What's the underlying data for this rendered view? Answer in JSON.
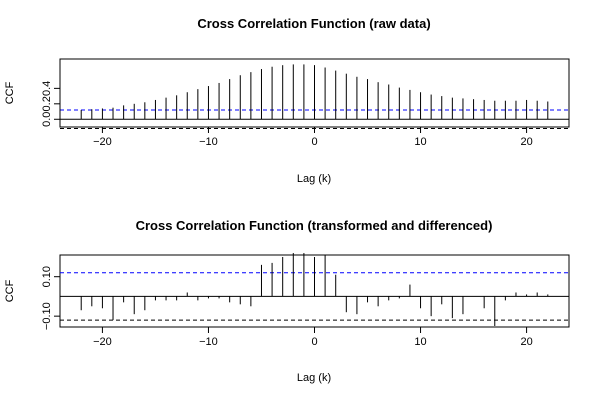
{
  "chart_data": [
    {
      "type": "bar",
      "title": "Cross Correlation Function (raw data)",
      "xlabel": "Lag (k)",
      "ylabel": "CCF",
      "xlim": [
        -24,
        24
      ],
      "ylim": [
        -0.1,
        0.78
      ],
      "x_ticks": [
        -20,
        -10,
        0,
        10,
        20
      ],
      "x_tick_labels": [
        "−20",
        "−10",
        "0",
        "10",
        "20"
      ],
      "y_ticks": [
        0.0,
        0.2,
        0.4
      ],
      "y_tick_labels": [
        "0.0",
        "0.2",
        "0.4"
      ],
      "confidence_bounds": [
        0.12,
        -0.12
      ],
      "confidence_color": "#0000ff",
      "grid": false,
      "lags": [
        -22,
        -21,
        -20,
        -19,
        -18,
        -17,
        -16,
        -15,
        -14,
        -13,
        -12,
        -11,
        -10,
        -9,
        -8,
        -7,
        -6,
        -5,
        -4,
        -3,
        -2,
        -1,
        0,
        1,
        2,
        3,
        4,
        5,
        6,
        7,
        8,
        9,
        10,
        11,
        12,
        13,
        14,
        15,
        16,
        17,
        18,
        19,
        20,
        21,
        22
      ],
      "values": [
        0.12,
        0.13,
        0.14,
        0.15,
        0.18,
        0.2,
        0.22,
        0.25,
        0.28,
        0.31,
        0.35,
        0.39,
        0.43,
        0.47,
        0.52,
        0.57,
        0.61,
        0.65,
        0.68,
        0.7,
        0.71,
        0.71,
        0.7,
        0.67,
        0.63,
        0.59,
        0.55,
        0.52,
        0.48,
        0.45,
        0.41,
        0.38,
        0.35,
        0.32,
        0.3,
        0.28,
        0.27,
        0.26,
        0.25,
        0.24,
        0.24,
        0.24,
        0.25,
        0.24,
        0.23
      ]
    },
    {
      "type": "bar",
      "title": "Cross Correlation Function (transformed and differenced)",
      "xlabel": "Lag (k)",
      "ylabel": "CCF",
      "xlim": [
        -24,
        24
      ],
      "ylim": [
        -0.155,
        0.21
      ],
      "x_ticks": [
        -20,
        -10,
        0,
        10,
        20
      ],
      "x_tick_labels": [
        "−20",
        "−10",
        "0",
        "10",
        "20"
      ],
      "y_ticks": [
        -0.1,
        0.1
      ],
      "y_tick_labels": [
        "−0.10",
        "0.10"
      ],
      "confidence_bounds": [
        0.12,
        -0.12
      ],
      "confidence_color": "#0000ff",
      "grid": false,
      "lags": [
        -22,
        -21,
        -20,
        -19,
        -18,
        -17,
        -16,
        -15,
        -14,
        -13,
        -12,
        -11,
        -10,
        -9,
        -8,
        -7,
        -6,
        -5,
        -4,
        -3,
        -2,
        -1,
        0,
        1,
        2,
        3,
        4,
        5,
        6,
        7,
        8,
        9,
        10,
        11,
        12,
        13,
        14,
        15,
        16,
        17,
        18,
        19,
        20,
        21,
        22
      ],
      "values": [
        -0.07,
        -0.05,
        -0.06,
        -0.12,
        -0.03,
        -0.09,
        -0.07,
        -0.02,
        -0.02,
        -0.02,
        0.02,
        -0.02,
        -0.01,
        -0.01,
        -0.03,
        -0.04,
        -0.05,
        0.16,
        0.17,
        0.2,
        0.22,
        0.22,
        0.2,
        0.21,
        0.11,
        -0.08,
        -0.09,
        -0.03,
        -0.05,
        -0.02,
        -0.01,
        0.06,
        -0.06,
        -0.1,
        -0.04,
        -0.11,
        -0.09,
        0.0,
        -0.06,
        -0.15,
        -0.02,
        0.02,
        0.01,
        0.02,
        0.01
      ]
    }
  ]
}
